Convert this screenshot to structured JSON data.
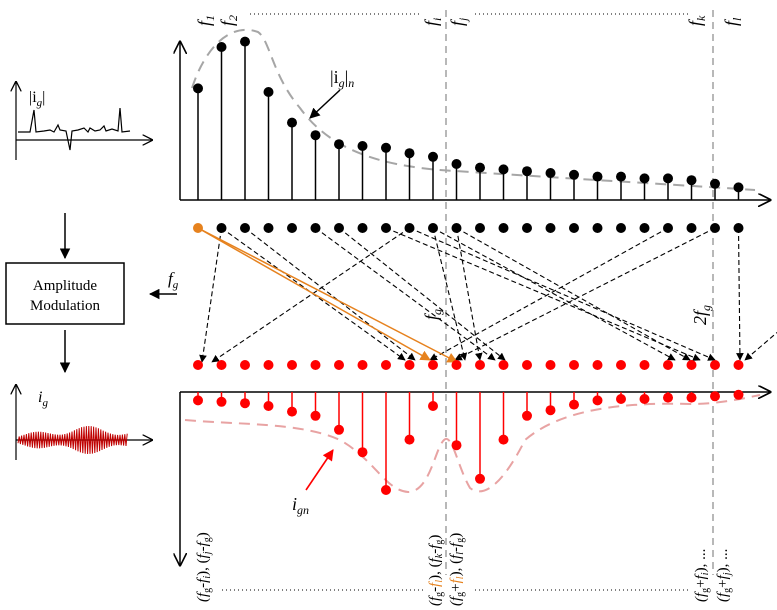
{
  "top_labels": {
    "f1": "f",
    "f1_sub": "1",
    "f2": "f",
    "f2_sub": "2",
    "fi": "f",
    "fi_sub": "i",
    "fj": "f",
    "fj_sub": "j",
    "fk": "f",
    "fk_sub": "k",
    "fl": "f",
    "fl_sub": "l"
  },
  "left": {
    "ig_abs_label": "|i",
    "ig_abs_sub": "g",
    "ig_abs_close": "|",
    "modulation_line1": "Amplitude",
    "modulation_line2": "Modulation",
    "fg_input": "f",
    "fg_input_sub": "g",
    "ig_label": "i",
    "ig_sub": "g"
  },
  "annotations": {
    "ign_abs": "|i",
    "ign_abs_sub": "g",
    "ign_abs_close": "|",
    "ign_abs_n": "n",
    "fg_axis": "f",
    "fg_axis_sub": "g",
    "twofg_axis": "2f",
    "twofg_axis_sub": "g",
    "ign": "i",
    "ign_sub": "gn"
  },
  "bottom_labels": {
    "group1": "(f_g-f_i), (f_j-f_g)",
    "group2a": "(f_g-f_l), (f_k-f_g)",
    "group2b": "(f_g+f_l), (f_l-f_g)",
    "group3a": "(f_g+f_i), ...",
    "group3b": "(f_g+f_j), ..."
  },
  "colors": {
    "black": "#000000",
    "red": "#ff0000",
    "orange": "#e6821e",
    "gray_dash": "#a6a6a6",
    "pink_dash": "#e8a3a3",
    "dark_red": "#c00000"
  },
  "top_spectrum": {
    "values": [
      0.62,
      0.85,
      0.88,
      0.6,
      0.43,
      0.36,
      0.31,
      0.3,
      0.29,
      0.26,
      0.24,
      0.2,
      0.18,
      0.17,
      0.16,
      0.15,
      0.14,
      0.13,
      0.13,
      0.12,
      0.12,
      0.11,
      0.09,
      0.07
    ]
  },
  "bottom_spectrum": {
    "values": [
      0.06,
      0.07,
      0.08,
      0.1,
      0.14,
      0.17,
      0.27,
      0.43,
      0.7,
      0.34,
      0.1,
      0.38,
      0.62,
      0.34,
      0.17,
      0.13,
      0.09,
      0.06,
      0.05,
      0.05,
      0.04,
      0.04,
      0.03,
      0.02
    ]
  }
}
